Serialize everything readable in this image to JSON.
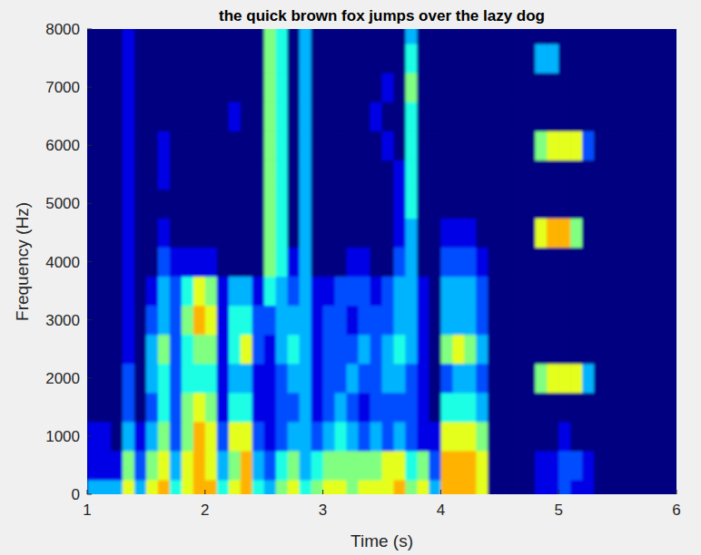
{
  "chart_data": {
    "type": "heatmap",
    "title": "the quick brown fox jumps over the lazy dog",
    "x_label": "Time (s)",
    "y_label": "Frequency (Hz)",
    "xlim": [
      1,
      6
    ],
    "xticks": [
      1,
      2,
      3,
      4,
      5,
      6
    ],
    "ylim": [
      0,
      8000
    ],
    "yticks": [
      0,
      1000,
      2000,
      3000,
      4000,
      5000,
      6000,
      7000,
      8000
    ],
    "zlim": [
      0,
      10
    ],
    "x": [
      1.05,
      1.15,
      1.25,
      1.35,
      1.45,
      1.55,
      1.65,
      1.75,
      1.85,
      1.95,
      2.05,
      2.15,
      2.25,
      2.35,
      2.45,
      2.55,
      2.65,
      2.75,
      2.85,
      2.95,
      3.05,
      3.15,
      3.25,
      3.35,
      3.45,
      3.55,
      3.65,
      3.75,
      3.85,
      3.95,
      4.05,
      4.15,
      4.25,
      4.35,
      4.45,
      4.55,
      4.65,
      4.75,
      4.85,
      4.95,
      5.05,
      5.15,
      5.25,
      5.35,
      5.45,
      5.55,
      5.65,
      5.75,
      5.85,
      5.95
    ],
    "y": [
      0,
      500,
      1000,
      1500,
      2000,
      2500,
      3000,
      3500,
      4000,
      4500,
      5000,
      5500,
      6000,
      6500,
      7000,
      7500,
      8000
    ],
    "cells": [
      [
        3,
        3,
        3,
        6,
        3,
        6,
        7,
        4,
        6,
        7,
        7,
        4,
        6,
        7,
        4,
        3,
        5,
        6,
        4,
        5,
        6,
        6,
        5,
        6,
        6,
        6,
        7,
        5,
        6,
        3,
        7,
        7,
        7,
        6,
        0,
        0,
        0,
        0,
        1,
        1,
        2,
        1,
        1,
        0,
        0,
        0,
        0,
        0,
        0,
        0
      ],
      [
        1,
        1,
        1,
        5,
        2,
        5,
        6,
        3,
        6,
        7,
        6,
        3,
        5,
        7,
        3,
        2,
        4,
        5,
        3,
        4,
        5,
        5,
        5,
        5,
        5,
        6,
        6,
        4,
        5,
        2,
        7,
        7,
        7,
        6,
        0,
        0,
        0,
        0,
        1,
        1,
        2,
        2,
        1,
        0,
        0,
        0,
        0,
        0,
        0,
        0
      ],
      [
        1,
        1,
        0,
        3,
        1,
        3,
        5,
        2,
        5,
        7,
        6,
        2,
        6,
        6,
        2,
        1,
        2,
        3,
        3,
        2,
        3,
        4,
        3,
        2,
        3,
        2,
        3,
        2,
        1,
        1,
        6,
        6,
        6,
        5,
        0,
        0,
        0,
        0,
        0,
        0,
        1,
        0,
        0,
        0,
        0,
        0,
        0,
        0,
        0,
        0
      ],
      [
        0,
        0,
        0,
        2,
        0,
        2,
        4,
        2,
        5,
        6,
        5,
        1,
        4,
        4,
        1,
        1,
        2,
        2,
        3,
        1,
        2,
        3,
        2,
        1,
        2,
        2,
        2,
        2,
        1,
        0,
        4,
        4,
        4,
        3,
        0,
        0,
        0,
        0,
        0,
        0,
        0,
        0,
        0,
        0,
        0,
        0,
        0,
        0,
        0,
        0
      ],
      [
        0,
        0,
        0,
        2,
        0,
        3,
        4,
        2,
        4,
        4,
        4,
        1,
        3,
        3,
        1,
        1,
        2,
        3,
        3,
        1,
        2,
        2,
        3,
        2,
        2,
        3,
        3,
        2,
        1,
        0,
        2,
        3,
        3,
        2,
        0,
        0,
        0,
        0,
        5,
        6,
        6,
        6,
        3,
        0,
        0,
        0,
        0,
        0,
        0,
        0
      ],
      [
        0,
        0,
        0,
        1,
        0,
        3,
        5,
        2,
        4,
        5,
        5,
        1,
        4,
        6,
        2,
        1,
        3,
        4,
        3,
        1,
        2,
        2,
        2,
        3,
        2,
        3,
        4,
        3,
        1,
        0,
        5,
        6,
        5,
        3,
        0,
        0,
        0,
        0,
        0,
        0,
        0,
        0,
        0,
        0,
        0,
        0,
        0,
        0,
        0,
        0
      ],
      [
        0,
        0,
        0,
        1,
        0,
        2,
        3,
        2,
        5,
        7,
        6,
        1,
        4,
        4,
        2,
        2,
        3,
        3,
        3,
        1,
        2,
        2,
        1,
        2,
        2,
        2,
        3,
        3,
        1,
        0,
        3,
        3,
        3,
        2,
        0,
        0,
        0,
        0,
        0,
        0,
        0,
        0,
        0,
        0,
        0,
        0,
        0,
        0,
        0,
        0
      ],
      [
        0,
        0,
        0,
        1,
        0,
        1,
        3,
        2,
        4,
        6,
        5,
        1,
        3,
        3,
        1,
        4,
        3,
        2,
        3,
        1,
        1,
        2,
        2,
        2,
        1,
        2,
        3,
        3,
        1,
        0,
        3,
        3,
        3,
        2,
        0,
        0,
        0,
        0,
        0,
        0,
        0,
        0,
        0,
        0,
        0,
        0,
        0,
        0,
        0,
        0
      ],
      [
        0,
        0,
        0,
        1,
        0,
        0,
        2,
        1,
        1,
        1,
        1,
        0,
        0,
        0,
        0,
        5,
        4,
        1,
        3,
        0,
        0,
        0,
        1,
        1,
        0,
        0,
        2,
        3,
        0,
        0,
        2,
        2,
        2,
        1,
        0,
        0,
        0,
        0,
        0,
        0,
        0,
        0,
        0,
        0,
        0,
        0,
        0,
        0,
        0,
        0
      ],
      [
        0,
        0,
        0,
        1,
        0,
        0,
        1,
        0,
        0,
        0,
        0,
        0,
        0,
        0,
        0,
        5,
        4,
        0,
        3,
        0,
        0,
        0,
        0,
        0,
        0,
        0,
        1,
        3,
        0,
        0,
        1,
        1,
        1,
        0,
        0,
        0,
        0,
        0,
        6,
        7,
        7,
        5,
        0,
        0,
        0,
        0,
        0,
        0,
        0,
        0
      ],
      [
        0,
        0,
        0,
        1,
        0,
        0,
        0,
        0,
        0,
        0,
        0,
        0,
        0,
        0,
        0,
        5,
        4,
        0,
        3,
        0,
        0,
        0,
        0,
        0,
        0,
        0,
        1,
        4,
        0,
        0,
        0,
        0,
        0,
        0,
        0,
        0,
        0,
        0,
        0,
        0,
        0,
        0,
        0,
        0,
        0,
        0,
        0,
        0,
        0,
        0
      ],
      [
        0,
        0,
        0,
        1,
        0,
        0,
        1,
        0,
        0,
        0,
        0,
        0,
        0,
        0,
        0,
        5,
        4,
        0,
        3,
        0,
        0,
        0,
        0,
        0,
        0,
        0,
        1,
        4,
        0,
        0,
        0,
        0,
        0,
        0,
        0,
        0,
        0,
        0,
        0,
        0,
        0,
        0,
        0,
        0,
        0,
        0,
        0,
        0,
        0,
        0
      ],
      [
        0,
        0,
        0,
        1,
        0,
        0,
        1,
        0,
        0,
        0,
        0,
        0,
        0,
        0,
        0,
        5,
        4,
        0,
        3,
        0,
        0,
        0,
        0,
        0,
        0,
        1,
        0,
        4,
        0,
        0,
        0,
        0,
        0,
        0,
        0,
        0,
        0,
        0,
        5,
        6,
        6,
        6,
        2,
        0,
        0,
        0,
        0,
        0,
        0,
        0
      ],
      [
        0,
        0,
        0,
        1,
        0,
        0,
        0,
        0,
        0,
        0,
        0,
        0,
        1,
        0,
        0,
        5,
        4,
        0,
        3,
        0,
        0,
        0,
        0,
        0,
        1,
        0,
        0,
        4,
        0,
        0,
        0,
        0,
        0,
        0,
        0,
        0,
        0,
        0,
        0,
        0,
        0,
        0,
        0,
        0,
        0,
        0,
        0,
        0,
        0,
        0
      ],
      [
        0,
        0,
        0,
        1,
        0,
        0,
        0,
        0,
        0,
        0,
        0,
        0,
        0,
        0,
        0,
        5,
        4,
        0,
        3,
        0,
        0,
        0,
        0,
        0,
        0,
        1,
        0,
        5,
        0,
        0,
        0,
        0,
        0,
        0,
        0,
        0,
        0,
        0,
        0,
        0,
        0,
        0,
        0,
        0,
        0,
        0,
        0,
        0,
        0,
        0
      ],
      [
        0,
        0,
        0,
        1,
        0,
        0,
        0,
        0,
        0,
        0,
        0,
        0,
        0,
        0,
        0,
        5,
        4,
        0,
        3,
        0,
        0,
        0,
        0,
        0,
        0,
        0,
        0,
        4,
        0,
        0,
        0,
        0,
        0,
        0,
        0,
        0,
        0,
        0,
        3,
        3,
        0,
        0,
        0,
        0,
        0,
        0,
        0,
        0,
        0,
        0
      ],
      [
        0,
        0,
        0,
        1,
        0,
        0,
        0,
        0,
        0,
        0,
        0,
        0,
        0,
        0,
        0,
        5,
        4,
        0,
        3,
        0,
        0,
        0,
        0,
        0,
        0,
        0,
        0,
        3,
        0,
        0,
        0,
        0,
        0,
        0,
        0,
        0,
        0,
        0,
        0,
        0,
        0,
        0,
        0,
        0,
        0,
        0,
        0,
        0,
        0,
        0
      ]
    ]
  }
}
